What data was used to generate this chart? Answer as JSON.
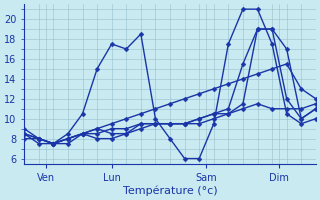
{
  "background_color": "#c8eaf0",
  "grid_color": "#9bbfcc",
  "line_color": "#1a35a8",
  "marker": "D",
  "markersize": 2.5,
  "linewidth": 1.0,
  "xlabel": "Température (°c)",
  "xlabel_fontsize": 8,
  "tick_fontsize": 7,
  "ylim": [
    5.5,
    21.5
  ],
  "yticks": [
    6,
    8,
    10,
    12,
    14,
    16,
    18,
    20
  ],
  "xlim": [
    0,
    20
  ],
  "xtick_positions": [
    1.5,
    6.0,
    12.5,
    17.5
  ],
  "xtick_labels": [
    "Ven",
    "Lun",
    "Sam",
    "Dim"
  ],
  "lines": [
    {
      "x": [
        0,
        1,
        2,
        3,
        4,
        5,
        6,
        7,
        8,
        9,
        10,
        11,
        12,
        13,
        14,
        15,
        16,
        17,
        18,
        19,
        20
      ],
      "y": [
        9.0,
        8.0,
        7.5,
        8.5,
        10.5,
        15.0,
        17.5,
        17.0,
        18.5,
        10.0,
        8.0,
        6.0,
        6.0,
        9.5,
        17.5,
        21.0,
        21.0,
        17.5,
        10.5,
        9.5,
        10.0
      ]
    },
    {
      "x": [
        0,
        1,
        2,
        3,
        4,
        5,
        6,
        7,
        8,
        9,
        10,
        11,
        12,
        13,
        14,
        15,
        16,
        17,
        18,
        19,
        20
      ],
      "y": [
        8.5,
        7.5,
        7.5,
        7.5,
        8.5,
        8.0,
        8.0,
        8.5,
        9.5,
        9.5,
        9.5,
        9.5,
        10.0,
        10.5,
        10.5,
        11.0,
        11.5,
        11.0,
        11.0,
        11.0,
        11.5
      ]
    },
    {
      "x": [
        0,
        1,
        2,
        3,
        4,
        5,
        6,
        7,
        8,
        9,
        10,
        11,
        12,
        13,
        14,
        15,
        16,
        17,
        18,
        19,
        20
      ],
      "y": [
        8.0,
        8.0,
        7.5,
        8.0,
        8.5,
        8.5,
        9.0,
        9.0,
        9.5,
        9.5,
        9.5,
        9.5,
        10.0,
        10.5,
        11.0,
        15.5,
        19.0,
        19.0,
        17.0,
        10.0,
        11.0
      ]
    },
    {
      "x": [
        0,
        1,
        2,
        3,
        4,
        5,
        6,
        7,
        8,
        9,
        10,
        11,
        12,
        13,
        14,
        15,
        16,
        17,
        18,
        19,
        20
      ],
      "y": [
        8.5,
        8.0,
        7.5,
        8.0,
        8.5,
        9.0,
        9.5,
        10.0,
        10.5,
        11.0,
        11.5,
        12.0,
        12.5,
        13.0,
        13.5,
        14.0,
        14.5,
        15.0,
        15.5,
        13.0,
        12.0
      ]
    },
    {
      "x": [
        0,
        1,
        2,
        3,
        4,
        5,
        6,
        7,
        8,
        9,
        10,
        11,
        12,
        13,
        14,
        15,
        16,
        17,
        18,
        19,
        20
      ],
      "y": [
        8.5,
        8.0,
        7.5,
        8.0,
        8.5,
        9.0,
        8.5,
        8.5,
        9.0,
        9.5,
        9.5,
        9.5,
        9.5,
        10.0,
        10.5,
        11.5,
        19.0,
        19.0,
        12.0,
        10.0,
        11.0
      ]
    }
  ]
}
